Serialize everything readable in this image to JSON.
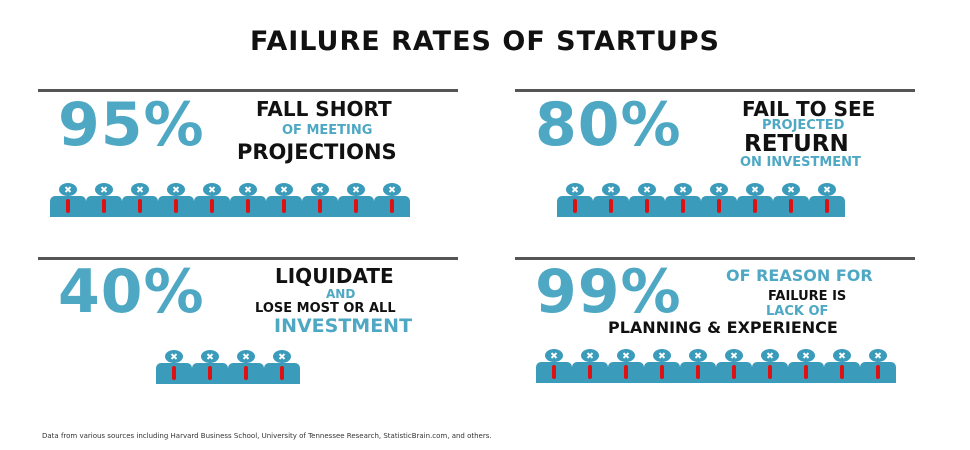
{
  "title": "FAILURE RATES OF STARTUPS",
  "colors": {
    "accent": "#4ea8c4",
    "figure": "#3b9bbb",
    "tie": "#dd1111",
    "text": "#111111"
  },
  "icons": {
    "person": "person-x-head-icon"
  },
  "stats": [
    {
      "percent": "95%",
      "line1": "FALL SHORT",
      "line2": "OF MEETING",
      "line3": "PROJECTIONS",
      "people_count": 10
    },
    {
      "percent": "80%",
      "line1": "FAIL TO SEE",
      "line2": "PROJECTED",
      "line3": "RETURN",
      "line4": "ON INVESTMENT",
      "people_count": 8
    },
    {
      "percent": "40%",
      "line1": "LIQUIDATE",
      "line2": "AND",
      "line3": "LOSE MOST OR ALL",
      "line4": "INVESTMENT",
      "people_count": 4
    },
    {
      "percent": "99%",
      "line1": "OF REASON FOR",
      "line2": "FAILURE IS",
      "line3": "LACK OF",
      "line4": "PLANNING & EXPERIENCE",
      "people_count": 10
    }
  ],
  "source": "Data from various sources including Harvard Business School,  University of Tennessee Research, StatisticBrain.com, and others."
}
